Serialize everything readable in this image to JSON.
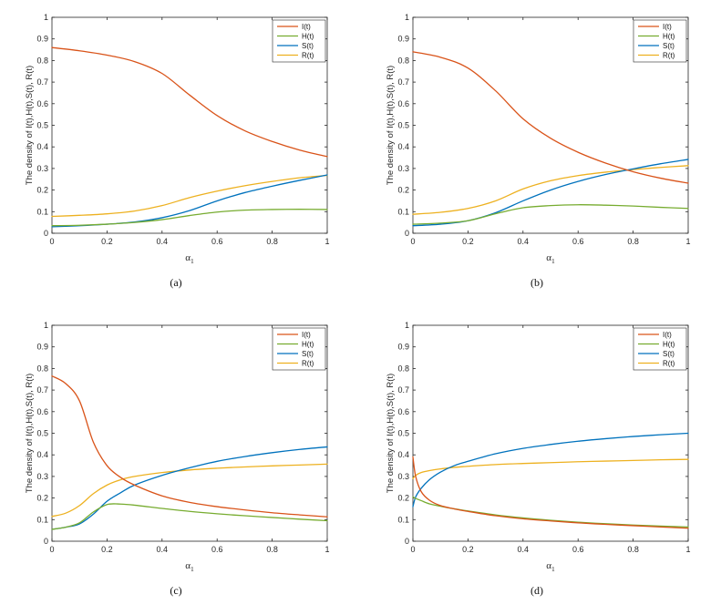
{
  "figure": {
    "colors": {
      "I": "#D95319",
      "H": "#77AC30",
      "S": "#0072BD",
      "R": "#EDB120"
    },
    "series_names": [
      "I(t)",
      "H(t)",
      "S(t)",
      "R(t)"
    ]
  },
  "chart_data": [
    {
      "type": "line",
      "panel_label": "(a)",
      "title": "",
      "xlabel": "α",
      "xlabel_subscript": "1",
      "ylabel": "The density of I(t),H(t),S(t), R(t)",
      "xlim": [
        0,
        1
      ],
      "ylim": [
        0,
        1
      ],
      "xticks": [
        "0",
        "0.2",
        "0.4",
        "0.6",
        "0.8",
        "1"
      ],
      "yticks": [
        "0",
        "0.1",
        "0.2",
        "0.3",
        "0.4",
        "0.5",
        "0.6",
        "0.7",
        "0.8",
        "0.9",
        "1"
      ],
      "legend_position": "top-right",
      "x": [
        0,
        0.1,
        0.2,
        0.3,
        0.4,
        0.5,
        0.6,
        0.7,
        0.8,
        0.9,
        1.0
      ],
      "series": [
        {
          "name": "I(t)",
          "key": "I",
          "values": [
            0.86,
            0.845,
            0.825,
            0.795,
            0.74,
            0.64,
            0.545,
            0.475,
            0.425,
            0.385,
            0.355
          ]
        },
        {
          "name": "H(t)",
          "key": "H",
          "values": [
            0.035,
            0.037,
            0.042,
            0.05,
            0.063,
            0.082,
            0.098,
            0.107,
            0.11,
            0.111,
            0.11
          ]
        },
        {
          "name": "S(t)",
          "key": "S",
          "values": [
            0.03,
            0.035,
            0.042,
            0.052,
            0.072,
            0.105,
            0.15,
            0.188,
            0.218,
            0.245,
            0.27
          ]
        },
        {
          "name": "R(t)",
          "key": "R",
          "values": [
            0.078,
            0.083,
            0.09,
            0.103,
            0.128,
            0.165,
            0.195,
            0.22,
            0.24,
            0.257,
            0.268
          ]
        }
      ]
    },
    {
      "type": "line",
      "panel_label": "(b)",
      "title": "",
      "xlabel": "α",
      "xlabel_subscript": "1",
      "ylabel": "The density of I(t),H(t),S(t), R(t)",
      "xlim": [
        0,
        1
      ],
      "ylim": [
        0,
        1
      ],
      "xticks": [
        "0",
        "0.2",
        "0.4",
        "0.6",
        "0.8",
        "1"
      ],
      "yticks": [
        "0",
        "0.1",
        "0.2",
        "0.3",
        "0.4",
        "0.5",
        "0.6",
        "0.7",
        "0.8",
        "0.9",
        "1"
      ],
      "legend_position": "top-right",
      "x": [
        0,
        0.1,
        0.2,
        0.3,
        0.4,
        0.5,
        0.6,
        0.7,
        0.8,
        0.9,
        1.0
      ],
      "series": [
        {
          "name": "I(t)",
          "key": "I",
          "values": [
            0.84,
            0.815,
            0.765,
            0.66,
            0.53,
            0.44,
            0.375,
            0.325,
            0.285,
            0.255,
            0.232
          ]
        },
        {
          "name": "H(t)",
          "key": "H",
          "values": [
            0.042,
            0.047,
            0.058,
            0.09,
            0.118,
            0.128,
            0.132,
            0.13,
            0.126,
            0.12,
            0.115
          ]
        },
        {
          "name": "S(t)",
          "key": "S",
          "values": [
            0.035,
            0.042,
            0.058,
            0.095,
            0.15,
            0.2,
            0.24,
            0.272,
            0.298,
            0.322,
            0.342
          ]
        },
        {
          "name": "R(t)",
          "key": "R",
          "values": [
            0.088,
            0.097,
            0.115,
            0.15,
            0.205,
            0.243,
            0.267,
            0.283,
            0.295,
            0.305,
            0.313
          ]
        }
      ]
    },
    {
      "type": "line",
      "panel_label": "(c)",
      "title": "",
      "xlabel": "α",
      "xlabel_subscript": "1",
      "ylabel": "The density of I(t),H(t),S(t), R(t)",
      "xlim": [
        0,
        1
      ],
      "ylim": [
        0,
        1
      ],
      "xticks": [
        "0",
        "0.2",
        "0.4",
        "0.6",
        "0.8",
        "1"
      ],
      "yticks": [
        "0",
        "0.1",
        "0.2",
        "0.3",
        "0.4",
        "0.5",
        "0.6",
        "0.7",
        "0.8",
        "0.9",
        "1"
      ],
      "legend_position": "top-right",
      "x": [
        0,
        0.05,
        0.1,
        0.15,
        0.2,
        0.25,
        0.3,
        0.4,
        0.5,
        0.6,
        0.7,
        0.8,
        0.9,
        1.0
      ],
      "series": [
        {
          "name": "I(t)",
          "key": "I",
          "values": [
            0.765,
            0.73,
            0.65,
            0.46,
            0.35,
            0.295,
            0.26,
            0.21,
            0.18,
            0.16,
            0.145,
            0.132,
            0.122,
            0.113
          ]
        },
        {
          "name": "H(t)",
          "key": "H",
          "values": [
            0.055,
            0.065,
            0.085,
            0.135,
            0.17,
            0.172,
            0.167,
            0.152,
            0.138,
            0.127,
            0.118,
            0.11,
            0.102,
            0.095
          ]
        },
        {
          "name": "S(t)",
          "key": "S",
          "values": [
            0.055,
            0.065,
            0.08,
            0.125,
            0.185,
            0.225,
            0.26,
            0.305,
            0.34,
            0.37,
            0.392,
            0.41,
            0.425,
            0.437
          ]
        },
        {
          "name": "R(t)",
          "key": "R",
          "values": [
            0.115,
            0.13,
            0.165,
            0.22,
            0.26,
            0.285,
            0.3,
            0.318,
            0.33,
            0.338,
            0.344,
            0.349,
            0.353,
            0.357
          ]
        }
      ]
    },
    {
      "type": "line",
      "panel_label": "(d)",
      "title": "",
      "xlabel": "α",
      "xlabel_subscript": "1",
      "ylabel": "The density of I(t),H(t),S(t), R(t)",
      "xlim": [
        0,
        1
      ],
      "ylim": [
        0,
        1
      ],
      "xticks": [
        "0",
        "0.2",
        "0.4",
        "0.6",
        "0.8",
        "1"
      ],
      "yticks": [
        "0",
        "0.1",
        "0.2",
        "0.3",
        "0.4",
        "0.5",
        "0.6",
        "0.7",
        "0.8",
        "0.9",
        "1"
      ],
      "legend_position": "top-right",
      "x": [
        0,
        0.01,
        0.03,
        0.06,
        0.1,
        0.15,
        0.2,
        0.3,
        0.4,
        0.5,
        0.6,
        0.7,
        0.8,
        0.9,
        1.0
      ],
      "series": [
        {
          "name": "I(t)",
          "key": "I",
          "values": [
            0.39,
            0.3,
            0.23,
            0.19,
            0.165,
            0.15,
            0.138,
            0.118,
            0.104,
            0.094,
            0.085,
            0.078,
            0.072,
            0.066,
            0.06
          ]
        },
        {
          "name": "H(t)",
          "key": "H",
          "values": [
            0.205,
            0.198,
            0.188,
            0.173,
            0.162,
            0.15,
            0.14,
            0.122,
            0.108,
            0.097,
            0.088,
            0.081,
            0.075,
            0.07,
            0.066
          ]
        },
        {
          "name": "S(t)",
          "key": "S",
          "values": [
            0.16,
            0.205,
            0.245,
            0.285,
            0.32,
            0.35,
            0.37,
            0.405,
            0.43,
            0.448,
            0.463,
            0.475,
            0.485,
            0.493,
            0.5
          ]
        },
        {
          "name": "R(t)",
          "key": "R",
          "values": [
            0.29,
            0.305,
            0.318,
            0.327,
            0.335,
            0.342,
            0.347,
            0.355,
            0.36,
            0.364,
            0.368,
            0.371,
            0.374,
            0.377,
            0.379
          ]
        }
      ]
    }
  ]
}
